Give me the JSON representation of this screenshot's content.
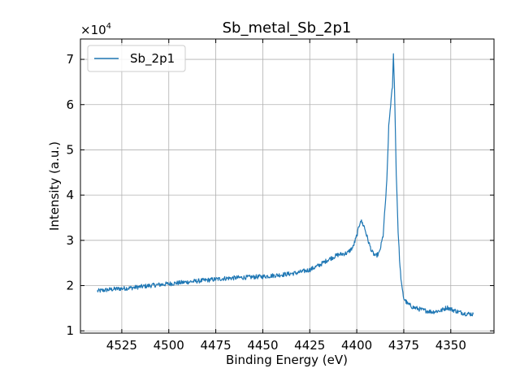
{
  "chart_data": {
    "type": "line",
    "title": "Sb_metal_Sb_2p1",
    "xlabel": "Binding Energy (eV)",
    "ylabel": "Intensity (a.u.)",
    "y_multiplier_label": "×10",
    "y_multiplier_exponent": "4",
    "x_reversed": true,
    "xlim": [
      4547,
      4327
    ],
    "ylim": [
      0.95,
      7.45
    ],
    "x_ticks": [
      4525,
      4500,
      4475,
      4450,
      4425,
      4400,
      4375,
      4350
    ],
    "x_tick_labels": [
      "4525",
      "4500",
      "4475",
      "4450",
      "4425",
      "4400",
      "4375",
      "4350"
    ],
    "y_ticks": [
      1,
      2,
      3,
      4,
      5,
      6,
      7
    ],
    "y_tick_labels": [
      "1",
      "2",
      "3",
      "4",
      "5",
      "6",
      "7"
    ],
    "grid": true,
    "legend_position": "top-left",
    "series": [
      {
        "name": "Sb_2p1",
        "color": "#1f77b4",
        "points": [
          [
            4538,
            1.88
          ],
          [
            4530,
            1.92
          ],
          [
            4520,
            1.95
          ],
          [
            4510,
            2.0
          ],
          [
            4500,
            2.04
          ],
          [
            4490,
            2.08
          ],
          [
            4480,
            2.12
          ],
          [
            4470,
            2.16
          ],
          [
            4460,
            2.18
          ],
          [
            4450,
            2.2
          ],
          [
            4440,
            2.24
          ],
          [
            4432,
            2.28
          ],
          [
            4425,
            2.35
          ],
          [
            4420,
            2.45
          ],
          [
            4415,
            2.58
          ],
          [
            4410,
            2.68
          ],
          [
            4405,
            2.72
          ],
          [
            4402,
            2.85
          ],
          [
            4400,
            3.1
          ],
          [
            4398,
            3.45
          ],
          [
            4396,
            3.3
          ],
          [
            4394,
            3.0
          ],
          [
            4392,
            2.75
          ],
          [
            4390,
            2.65
          ],
          [
            4388,
            2.72
          ],
          [
            4386,
            3.1
          ],
          [
            4384,
            4.3
          ],
          [
            4383,
            5.5
          ],
          [
            4382,
            6.0
          ],
          [
            4381,
            6.4
          ],
          [
            4380.5,
            7.1
          ],
          [
            4380,
            6.5
          ],
          [
            4379,
            4.5
          ],
          [
            4378,
            3.2
          ],
          [
            4377,
            2.4
          ],
          [
            4376,
            1.95
          ],
          [
            4375,
            1.72
          ],
          [
            4373,
            1.6
          ],
          [
            4370,
            1.52
          ],
          [
            4365,
            1.46
          ],
          [
            4360,
            1.42
          ],
          [
            4355,
            1.45
          ],
          [
            4352,
            1.52
          ],
          [
            4350,
            1.48
          ],
          [
            4346,
            1.42
          ],
          [
            4342,
            1.38
          ],
          [
            4338,
            1.37
          ]
        ]
      }
    ]
  }
}
